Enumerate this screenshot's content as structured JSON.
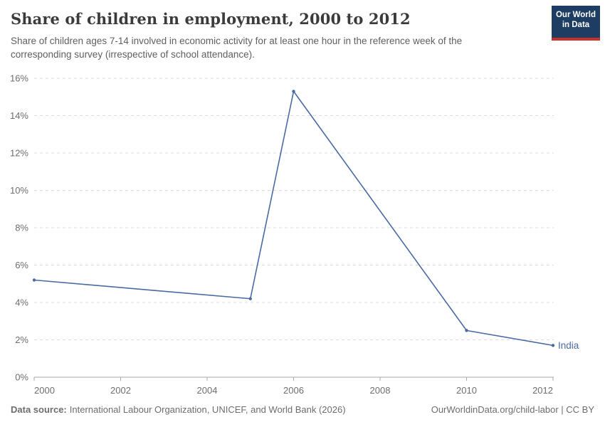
{
  "header": {
    "title": "Share of children in employment, 2000 to 2012",
    "subtitle_lines": [
      "Share of children ages 7-14 involved in economic activity for at least one hour in the reference week of the",
      "corresponding survey (irrespective of school attendance)."
    ],
    "logo": {
      "line1": "Our World",
      "line2": "in Data"
    }
  },
  "chart_data": {
    "type": "line",
    "title": "Share of children in employment, 2000 to 2012",
    "xlabel": "",
    "ylabel": "",
    "xlim": [
      2000,
      2012
    ],
    "ylim": [
      0,
      16
    ],
    "x_ticks": [
      2000,
      2002,
      2004,
      2006,
      2008,
      2010,
      2012
    ],
    "y_ticks": [
      0,
      2,
      4,
      6,
      8,
      10,
      12,
      14,
      16
    ],
    "y_tick_suffix": "%",
    "grid": "dashed-horizontal",
    "legend_position": "end-of-line-label",
    "series": [
      {
        "name": "India",
        "color": "#4b6aa3",
        "points": [
          {
            "x": 2000,
            "y": 5.2
          },
          {
            "x": 2005,
            "y": 4.2
          },
          {
            "x": 2006,
            "y": 15.3
          },
          {
            "x": 2010,
            "y": 2.5
          },
          {
            "x": 2012,
            "y": 1.7
          }
        ]
      }
    ]
  },
  "footer": {
    "source_label": "Data source:",
    "source_text": "International Labour Organization, UNICEF, and World Bank (2026)",
    "link_text": "OurWorldinData.org/child-labor | CC BY"
  },
  "colors": {
    "line": "#4b6aa3",
    "gridline": "#dcdcdc",
    "axis": "#a9a9a9",
    "tick_label": "#6e6e6e",
    "title": "#3b3b3b",
    "subtitle": "#5f5f5f",
    "footer": "#6d6d6d",
    "logo_background": "#1d3d63",
    "logo_accent": "#c8322b"
  }
}
